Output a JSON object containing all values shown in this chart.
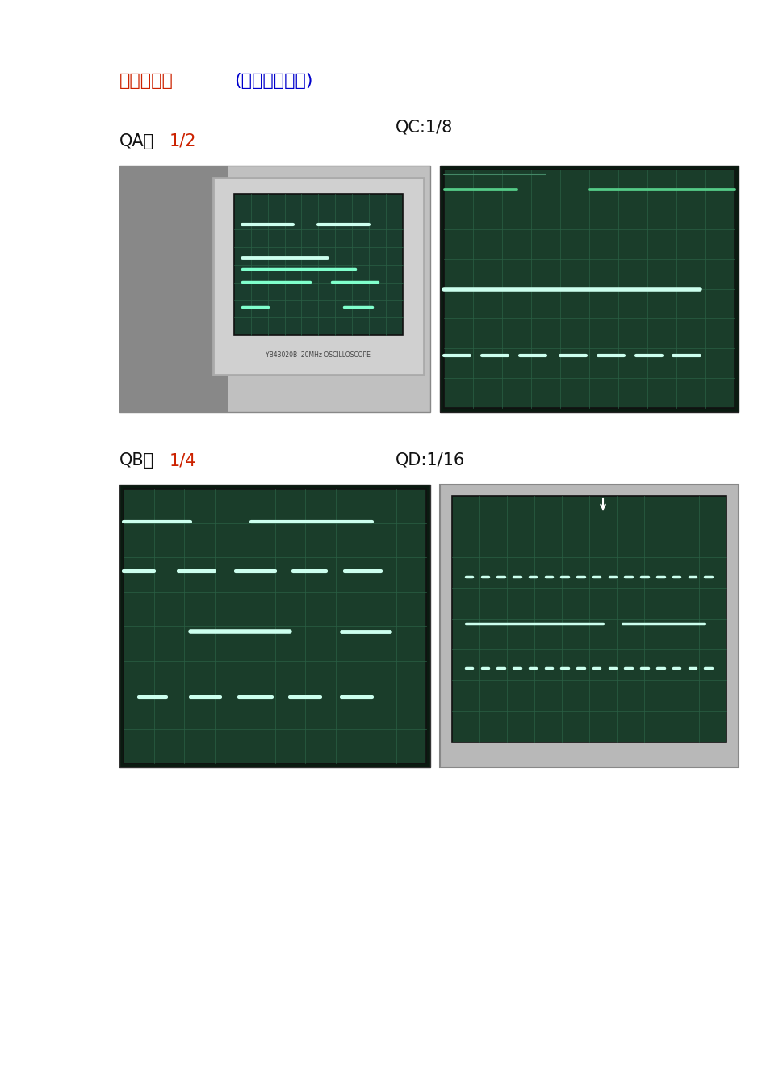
{
  "bg_color": "#ffffff",
  "page_bg": "#ffffff",
  "title_prefix": "实验结果：",
  "title_paren": "(十进制计数器)",
  "title_prefix_color": "#cc2200",
  "title_paren_color": "#0000cc",
  "label_qa": "QA：",
  "label_qa_num": "1/2",
  "label_qc": "QC:1/8",
  "label_qb": "QB：",
  "label_qb_num": "1/4",
  "label_qd": "QD:1/16",
  "label_color_black": "#111111",
  "label_color_red": "#cc2200",
  "beam_color": "#80ffcc",
  "beam_bright": "#ccffee",
  "screen_bg": "#1a3d2e",
  "screen_bg2": "#162f23",
  "grid_color": "#2a6045"
}
